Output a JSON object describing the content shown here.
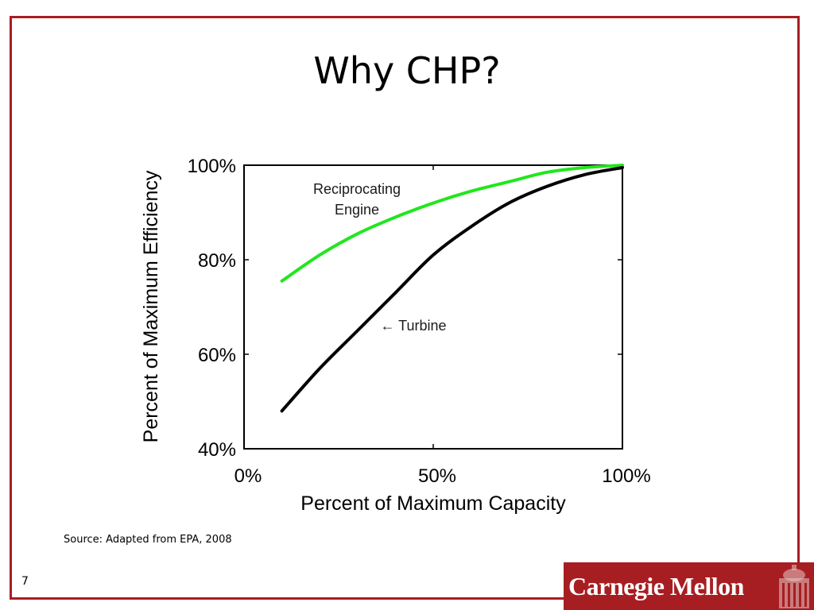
{
  "slide": {
    "title": "Why CHP?",
    "source": "Source:  Adapted from EPA, 2008",
    "page_number": "7",
    "logo_text": "Carnegie Mellon"
  },
  "colors": {
    "frame": "#a71e22",
    "reciprocating": "#22e61e",
    "turbine": "#000000"
  },
  "chart_data": {
    "type": "line",
    "xlabel": "Percent of Maximum Capacity",
    "ylabel": "Percent of Maximum Efficiency",
    "xlim": [
      0,
      100
    ],
    "ylim": [
      40,
      100
    ],
    "xticks": [
      "0%",
      "50%",
      "100%"
    ],
    "yticks": [
      "40%",
      "60%",
      "80%",
      "100%"
    ],
    "grid": false,
    "series": [
      {
        "name": "Reciprocating Engine",
        "label_lines": [
          "Reciprocating",
          "Engine"
        ],
        "x": [
          10,
          20,
          30,
          40,
          50,
          60,
          70,
          80,
          90,
          100
        ],
        "y": [
          75.5,
          81,
          85.5,
          89,
          92,
          94.5,
          96.5,
          98.5,
          99.5,
          100
        ]
      },
      {
        "name": "Turbine",
        "label_lines": [
          "← Turbine"
        ],
        "x": [
          10,
          20,
          30,
          40,
          50,
          60,
          70,
          80,
          90,
          100
        ],
        "y": [
          48,
          57,
          65,
          73,
          81,
          87,
          92,
          95.5,
          98,
          99.5
        ]
      }
    ]
  }
}
